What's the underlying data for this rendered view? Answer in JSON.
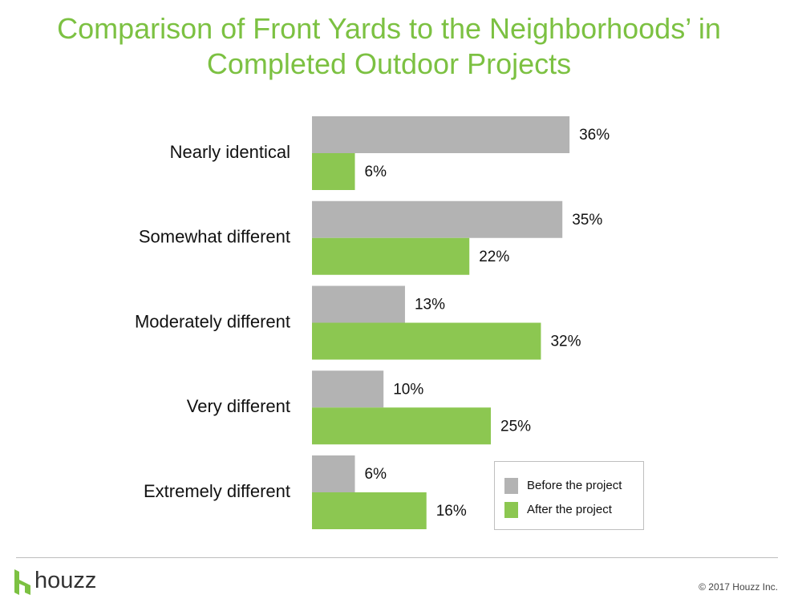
{
  "title": "Comparison of Front Yards to the Neighborhoods’ in Completed Outdoor Projects",
  "chart_data": {
    "type": "bar",
    "orientation": "horizontal",
    "title": "Comparison of Front Yards to the Neighborhoods’ in Completed Outdoor Projects",
    "categories": [
      "Nearly identical",
      "Somewhat different",
      "Moderately different",
      "Very different",
      "Extremely different"
    ],
    "series": [
      {
        "name": "Before the project",
        "color": "#b3b3b3",
        "values": [
          36,
          35,
          13,
          10,
          6
        ]
      },
      {
        "name": "After the project",
        "color": "#8cc751",
        "values": [
          6,
          22,
          32,
          25,
          16
        ]
      }
    ],
    "value_suffix": "%",
    "xlim": [
      0,
      40
    ],
    "grid": false,
    "legend_position": "bottom-right"
  },
  "legend": {
    "items": [
      {
        "label": "Before the project",
        "color": "#b3b3b3"
      },
      {
        "label": "After the project",
        "color": "#8cc751"
      }
    ]
  },
  "footer": {
    "brand": "houzz",
    "copyright": "© 2017 Houzz Inc."
  },
  "colors": {
    "title": "#7cc142",
    "before": "#b3b3b3",
    "after": "#8cc751"
  }
}
